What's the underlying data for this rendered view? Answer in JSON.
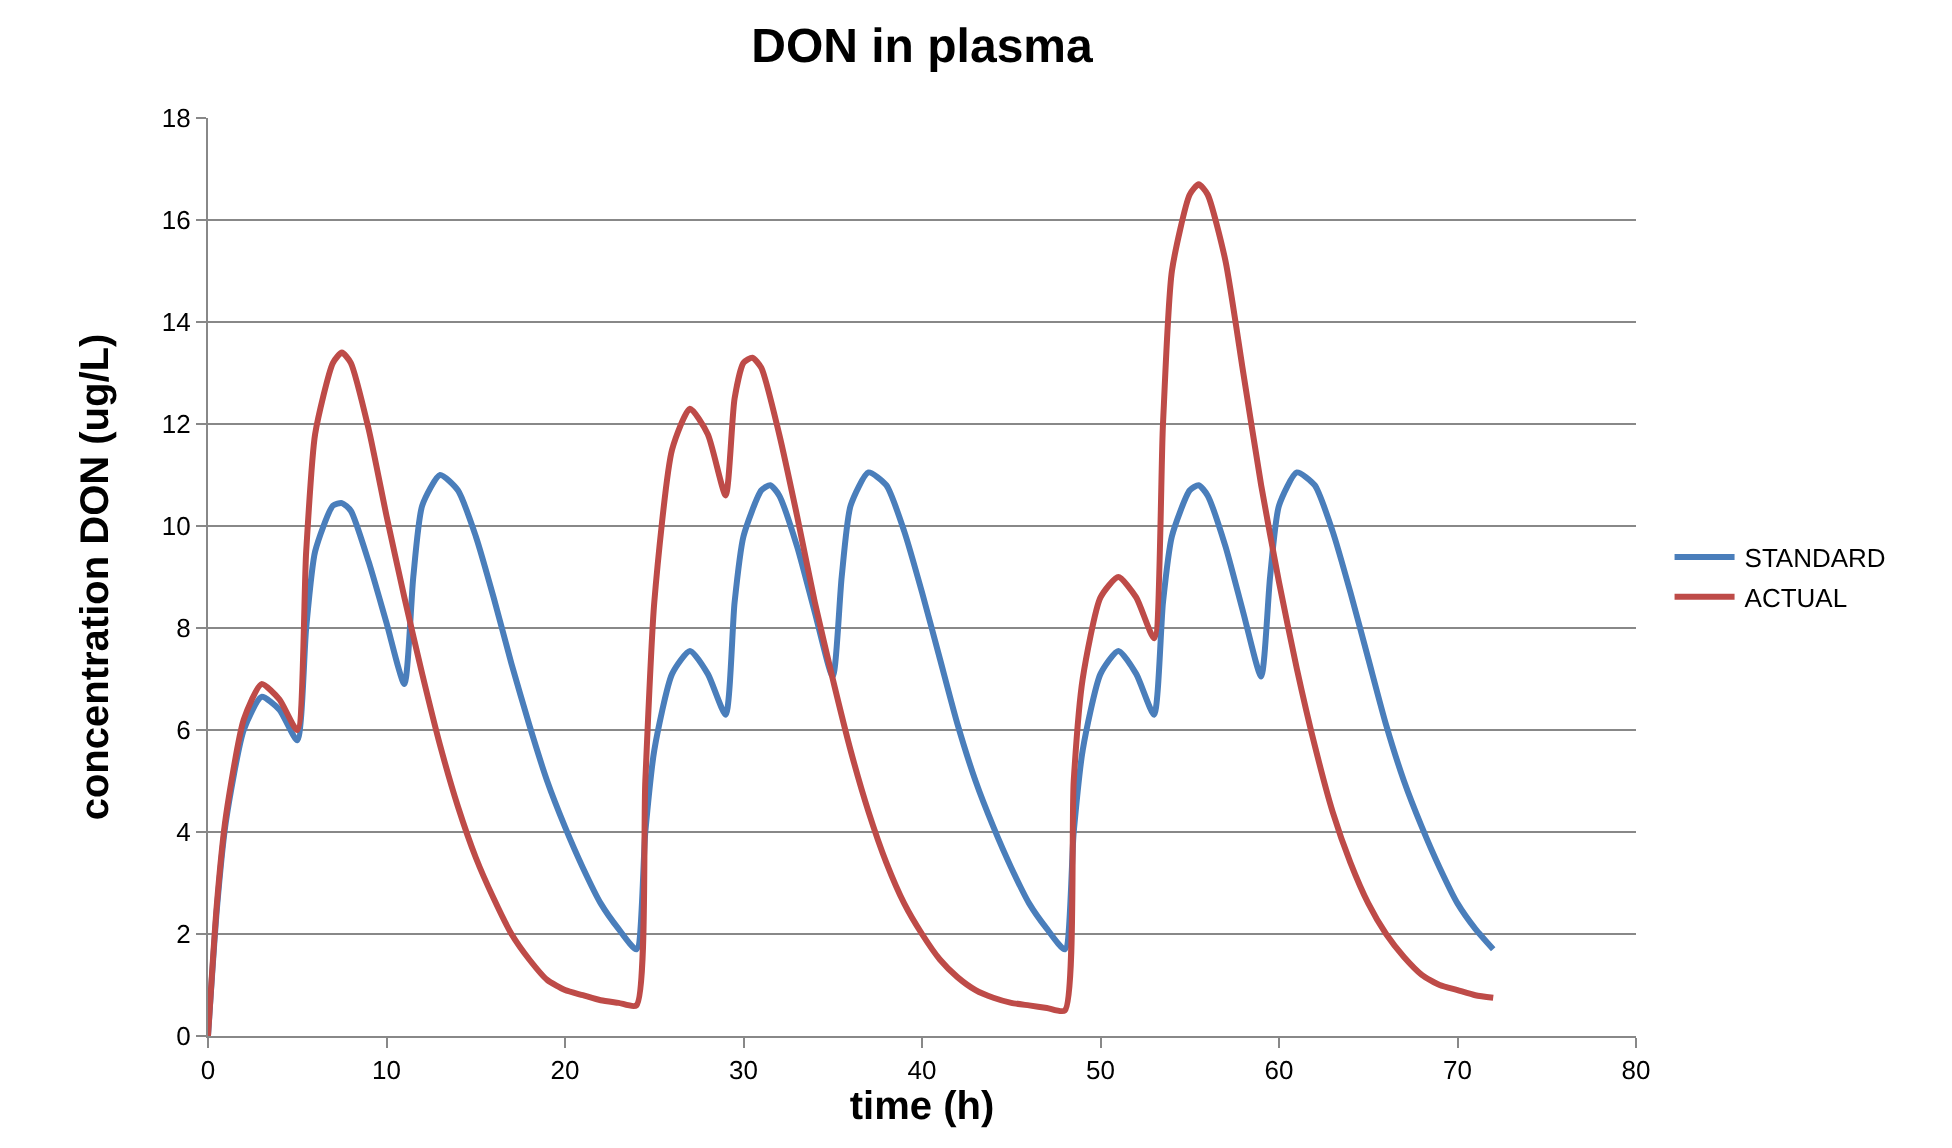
{
  "chart_data": {
    "type": "line",
    "title": "DON in plasma",
    "xlabel": "time (h)",
    "ylabel": "concentration DON (ug/L)",
    "xlim": [
      0,
      80
    ],
    "xticks": [
      0,
      10,
      20,
      30,
      40,
      50,
      60,
      70,
      80
    ],
    "ylim": [
      0,
      18
    ],
    "yticks": [
      0,
      2,
      4,
      6,
      8,
      10,
      12,
      14,
      16,
      18
    ],
    "grid": "y",
    "legend": "right",
    "marker": "none",
    "line_style": "solid",
    "series": [
      {
        "name": "STANDARD",
        "color": "#4a7ebb",
        "x": [
          0,
          0.5,
          1,
          2,
          3,
          4,
          5,
          5.5,
          6,
          7,
          7.5,
          8,
          9,
          10,
          11,
          11.5,
          12,
          13,
          14,
          15,
          16,
          17,
          18,
          19,
          20,
          21,
          22,
          23,
          24,
          24.5,
          25,
          26,
          27,
          28,
          29,
          29.5,
          30,
          31,
          31.5,
          32,
          33,
          34,
          35,
          35.5,
          36,
          37,
          38,
          39,
          40,
          41,
          42,
          43,
          44,
          45,
          46,
          47,
          48,
          48.5,
          49,
          50,
          51,
          52,
          53,
          53.5,
          54,
          55,
          55.5,
          56,
          57,
          58,
          59,
          59.5,
          60,
          61,
          62,
          63,
          64,
          65,
          66,
          67,
          68,
          69,
          70,
          71,
          72
        ],
        "values": [
          0,
          2.5,
          4.2,
          6.0,
          6.65,
          6.4,
          5.8,
          8,
          9.5,
          10.4,
          10.45,
          10.3,
          9.3,
          8.1,
          6.9,
          9,
          10.4,
          11.0,
          10.7,
          9.8,
          8.6,
          7.3,
          6.1,
          5.0,
          4.1,
          3.3,
          2.6,
          2.1,
          1.7,
          4,
          5.6,
          7.1,
          7.55,
          7.1,
          6.3,
          8.5,
          9.8,
          10.7,
          10.8,
          10.6,
          9.6,
          8.3,
          7.05,
          9,
          10.4,
          11.05,
          10.8,
          9.9,
          8.7,
          7.4,
          6.1,
          5.0,
          4.1,
          3.3,
          2.6,
          2.1,
          1.7,
          4,
          5.6,
          7.1,
          7.55,
          7.1,
          6.3,
          8.5,
          9.8,
          10.7,
          10.8,
          10.6,
          9.6,
          8.3,
          7.05,
          9,
          10.4,
          11.05,
          10.8,
          9.9,
          8.7,
          7.4,
          6.1,
          5.0,
          4.1,
          3.3,
          2.6,
          2.1,
          1.7
        ]
      },
      {
        "name": "ACTUAL",
        "color": "#be4b48",
        "x": [
          0,
          0.5,
          1,
          2,
          3,
          4,
          5,
          5.5,
          6,
          7,
          7.5,
          8,
          9,
          10,
          11,
          12,
          13,
          14,
          15,
          16,
          17,
          18,
          19,
          20,
          21,
          22,
          23,
          24,
          24.5,
          25,
          26,
          27,
          28,
          29,
          29.5,
          30,
          30.5,
          31,
          32,
          33,
          34,
          35,
          36,
          37,
          38,
          39,
          40,
          41,
          42,
          43,
          44,
          45,
          46,
          47,
          48,
          48.5,
          49,
          50,
          51,
          52,
          53,
          53.5,
          54,
          55,
          55.5,
          56,
          57,
          58,
          59,
          60,
          61,
          62,
          63,
          64,
          65,
          66,
          67,
          68,
          69,
          70,
          71,
          72
        ],
        "values": [
          0,
          2.6,
          4.3,
          6.2,
          6.9,
          6.6,
          6.0,
          9.5,
          11.8,
          13.2,
          13.4,
          13.2,
          11.9,
          10.2,
          8.6,
          7.1,
          5.7,
          4.5,
          3.5,
          2.7,
          2.0,
          1.5,
          1.1,
          0.9,
          0.8,
          0.7,
          0.65,
          0.6,
          5,
          8.5,
          11.5,
          12.3,
          11.8,
          10.6,
          12.5,
          13.2,
          13.3,
          13.1,
          11.8,
          10.2,
          8.5,
          7.0,
          5.6,
          4.4,
          3.4,
          2.6,
          2.0,
          1.5,
          1.15,
          0.9,
          0.75,
          0.65,
          0.6,
          0.55,
          0.5,
          5,
          7,
          8.6,
          9.0,
          8.6,
          7.8,
          12,
          15,
          16.5,
          16.7,
          16.5,
          15.2,
          13,
          10.8,
          8.9,
          7.2,
          5.7,
          4.4,
          3.4,
          2.6,
          2.0,
          1.55,
          1.2,
          1.0,
          0.9,
          0.8,
          0.75
        ]
      }
    ]
  }
}
